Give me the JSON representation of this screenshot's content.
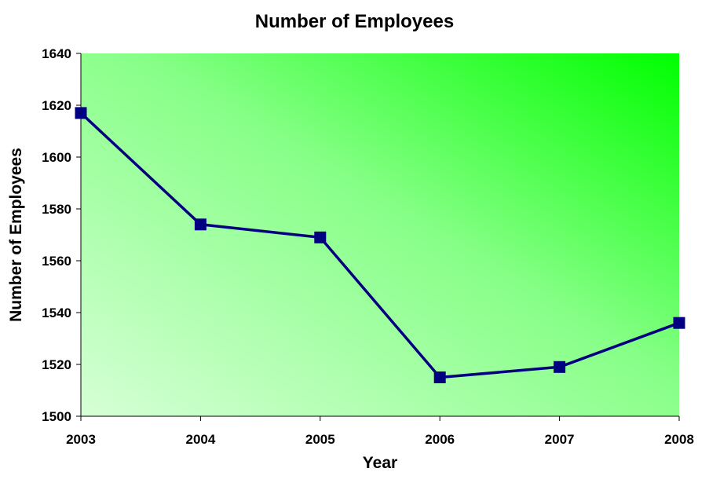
{
  "chart_data": {
    "type": "line",
    "title": "Number of Employees",
    "xlabel": "Year",
    "ylabel": "Number of Employees",
    "x": [
      "2003",
      "2004",
      "2005",
      "2006",
      "2007",
      "2008"
    ],
    "series": [
      {
        "values": [
          1617,
          1574,
          1569,
          1515,
          1519,
          1536
        ]
      }
    ],
    "ylim": [
      1500,
      1640
    ],
    "yticks": [
      1500,
      1520,
      1540,
      1560,
      1580,
      1600,
      1620,
      1640
    ],
    "grid": false,
    "legend": "none",
    "colors": {
      "line": "#000080",
      "marker": "#000080",
      "background_light": "#d6ffd6",
      "background_dark": "#00ff00"
    }
  }
}
